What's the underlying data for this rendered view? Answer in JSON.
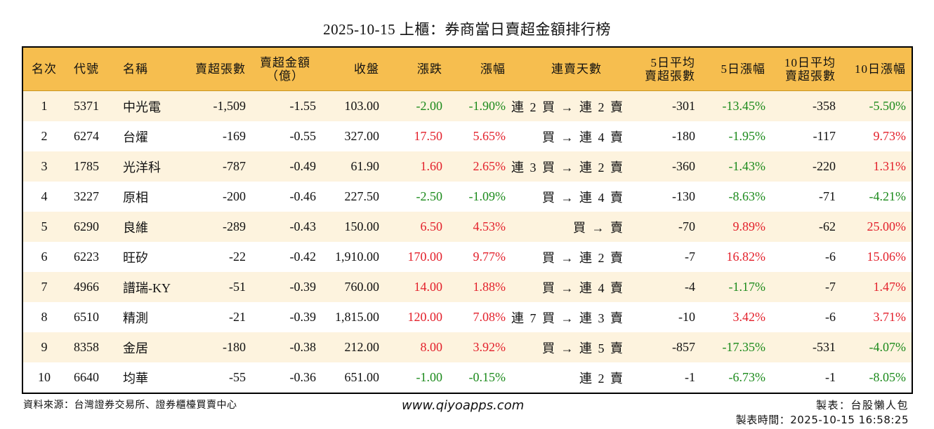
{
  "title": "2025-10-15 上櫃：券商當日賣超金額排行榜",
  "colors": {
    "header_bg": "#F6BE4F",
    "row_odd": "#FDF3DE",
    "row_even": "#FFFFFF",
    "up": "#E3202B",
    "down": "#1B8A1B"
  },
  "columns": {
    "rank": "名次",
    "code": "代號",
    "name": "名稱",
    "sell_shares": "賣超張數",
    "sell_amount_l1": "賣超金額",
    "sell_amount_l2": "（億）",
    "close": "收盤",
    "change": "漲跌",
    "pct": "漲幅",
    "streak": "連賣天數",
    "avg5_l1": "5日平均",
    "avg5_l2": "賣超張數",
    "pct5": "5日漲幅",
    "avg10_l1": "10日平均",
    "avg10_l2": "賣超張數",
    "pct10": "10日漲幅"
  },
  "rows": [
    {
      "rank": "1",
      "code": "5371",
      "name": "中光電",
      "sell_shares": "-1,509",
      "sell_amount": "-1.55",
      "close": "103.00",
      "change": "-2.00",
      "pct": "-1.90%",
      "streak": "連 2 買 → 連 2 賣",
      "avg5": "-301",
      "pct5": "-13.45%",
      "avg10": "-358",
      "pct10": "-5.50%"
    },
    {
      "rank": "2",
      "code": "6274",
      "name": "台燿",
      "sell_shares": "-169",
      "sell_amount": "-0.55",
      "close": "327.00",
      "change": "17.50",
      "pct": "5.65%",
      "streak": "買 → 連 4 賣",
      "avg5": "-180",
      "pct5": "-1.95%",
      "avg10": "-117",
      "pct10": "9.73%"
    },
    {
      "rank": "3",
      "code": "1785",
      "name": "光洋科",
      "sell_shares": "-787",
      "sell_amount": "-0.49",
      "close": "61.90",
      "change": "1.60",
      "pct": "2.65%",
      "streak": "連 3 買 → 連 2 賣",
      "avg5": "-360",
      "pct5": "-1.43%",
      "avg10": "-220",
      "pct10": "1.31%"
    },
    {
      "rank": "4",
      "code": "3227",
      "name": "原相",
      "sell_shares": "-200",
      "sell_amount": "-0.46",
      "close": "227.50",
      "change": "-2.50",
      "pct": "-1.09%",
      "streak": "買 → 連 4 賣",
      "avg5": "-130",
      "pct5": "-8.63%",
      "avg10": "-71",
      "pct10": "-4.21%"
    },
    {
      "rank": "5",
      "code": "6290",
      "name": "良維",
      "sell_shares": "-289",
      "sell_amount": "-0.43",
      "close": "150.00",
      "change": "6.50",
      "pct": "4.53%",
      "streak": "買 → 賣",
      "avg5": "-70",
      "pct5": "9.89%",
      "avg10": "-62",
      "pct10": "25.00%"
    },
    {
      "rank": "6",
      "code": "6223",
      "name": "旺矽",
      "sell_shares": "-22",
      "sell_amount": "-0.42",
      "close": "1,910.00",
      "change": "170.00",
      "pct": "9.77%",
      "streak": "買 → 連 2 賣",
      "avg5": "-7",
      "pct5": "16.82%",
      "avg10": "-6",
      "pct10": "15.06%"
    },
    {
      "rank": "7",
      "code": "4966",
      "name": "譜瑞-KY",
      "sell_shares": "-51",
      "sell_amount": "-0.39",
      "close": "760.00",
      "change": "14.00",
      "pct": "1.88%",
      "streak": "買 → 連 4 賣",
      "avg5": "-4",
      "pct5": "-1.17%",
      "avg10": "-7",
      "pct10": "1.47%"
    },
    {
      "rank": "8",
      "code": "6510",
      "name": "精測",
      "sell_shares": "-21",
      "sell_amount": "-0.39",
      "close": "1,815.00",
      "change": "120.00",
      "pct": "7.08%",
      "streak": "連 7 買 → 連 3 賣",
      "avg5": "-10",
      "pct5": "3.42%",
      "avg10": "-6",
      "pct10": "3.71%"
    },
    {
      "rank": "9",
      "code": "8358",
      "name": "金居",
      "sell_shares": "-180",
      "sell_amount": "-0.38",
      "close": "212.00",
      "change": "8.00",
      "pct": "3.92%",
      "streak": "買 → 連 5 賣",
      "avg5": "-857",
      "pct5": "-17.35%",
      "avg10": "-531",
      "pct10": "-4.07%"
    },
    {
      "rank": "10",
      "code": "6640",
      "name": "均華",
      "sell_shares": "-55",
      "sell_amount": "-0.36",
      "close": "651.00",
      "change": "-1.00",
      "pct": "-0.15%",
      "streak": "連 2 賣",
      "avg5": "-1",
      "pct5": "-6.73%",
      "avg10": "-1",
      "pct10": "-8.05%"
    }
  ],
  "footer": {
    "source": "資料來源：台灣證券交易所、證券櫃檯買賣中心",
    "website": "www.qiyoapps.com",
    "author": "製表：台股懶人包",
    "made_time": "製表時間：2025-10-15 16:58:25"
  }
}
